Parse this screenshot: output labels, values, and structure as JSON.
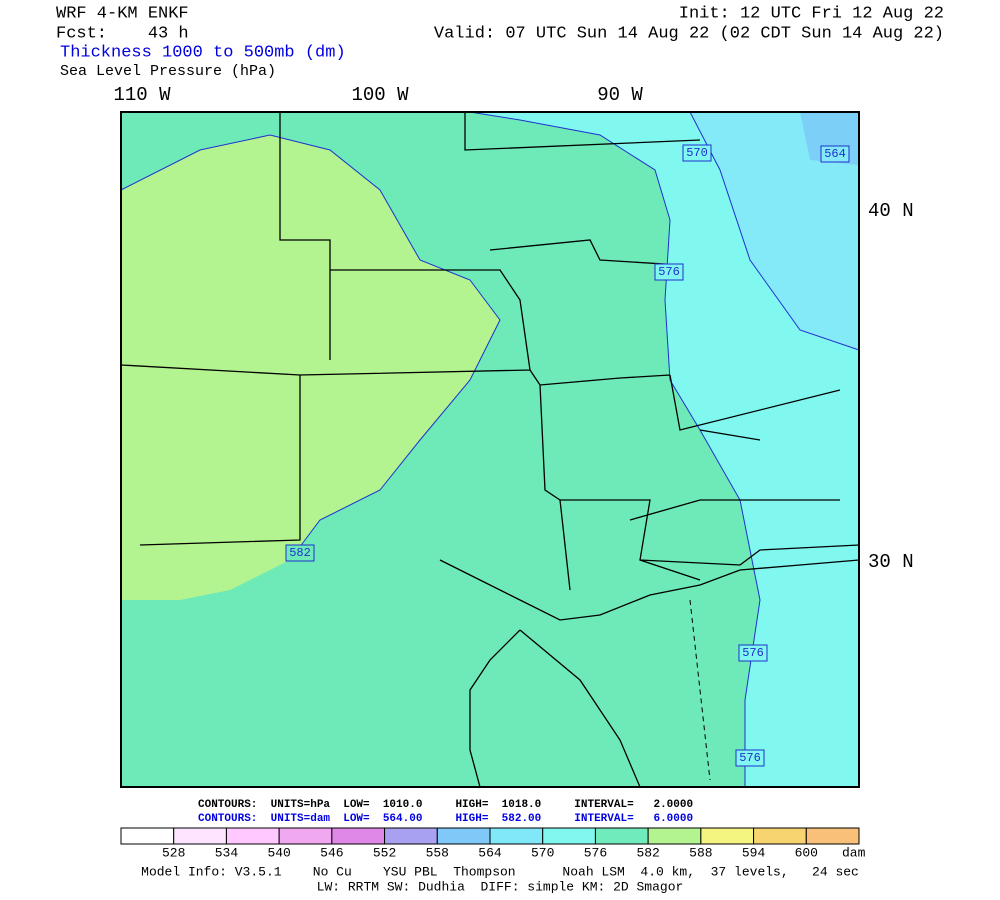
{
  "header": {
    "model": "WRF 4-KM ENKF",
    "forecast": "Fcst:    43 h",
    "field_1": "Thickness 1000 to 500mb (dm)",
    "field_2": "Sea Level Pressure (hPa)",
    "init": "Init: 12 UTC Fri 12 Aug 22",
    "valid": "Valid: 07 UTC Sun 14 Aug 22 (02 CDT Sun 14 Aug 22)"
  },
  "map": {
    "longitude_labels": [
      "110 W",
      "100 W",
      "90 W"
    ],
    "latitude_labels": [
      "40 N",
      "30 N"
    ],
    "contour_labels": [
      "570",
      "564",
      "576",
      "582",
      "576",
      "576"
    ]
  },
  "contours": {
    "pressure": "CONTOURS:  UNITS=hPa  LOW=  1010.0     HIGH=  1018.0     INTERVAL=   2.0000",
    "thickness": "CONTOURS:  UNITS=dam  LOW=  564.00     HIGH=  582.00     INTERVAL=   6.0000"
  },
  "colorbar": {
    "levels": [
      528,
      534,
      540,
      546,
      552,
      558,
      564,
      570,
      576,
      582,
      588,
      594,
      600
    ],
    "unit": "dam",
    "colors": [
      "#ffffff",
      "#ffe4ff",
      "#ffc8ff",
      "#f0a8f0",
      "#e088e8",
      "#a8a0f0",
      "#80c8f8",
      "#80e8f8",
      "#80f8f0",
      "#70ecbc",
      "#b4f490",
      "#f4f480",
      "#f8d470",
      "#f8c078"
    ]
  },
  "model_info": [
    "Model Info: V3.5.1    No Cu    YSU PBL  Thompson      Noah LSM  4.0 km,  37 levels,   24 sec",
    "LW: RRTM SW: Dudhia  DIFF: simple KM: 2D Smagor"
  ]
}
